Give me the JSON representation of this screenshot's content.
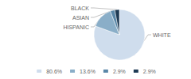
{
  "chart_data": {
    "type": "pie",
    "categories": [
      "WHITE",
      "HISPANIC",
      "ASIAN",
      "BLACK"
    ],
    "values": [
      80.6,
      13.6,
      2.9,
      2.9
    ],
    "value_labels": [
      "80.6%",
      "13.6%",
      "2.9%",
      "2.9%"
    ],
    "colors": [
      "#cfdded",
      "#8aaec8",
      "#5a87a8",
      "#1e3a54"
    ],
    "legend": "bottom"
  }
}
